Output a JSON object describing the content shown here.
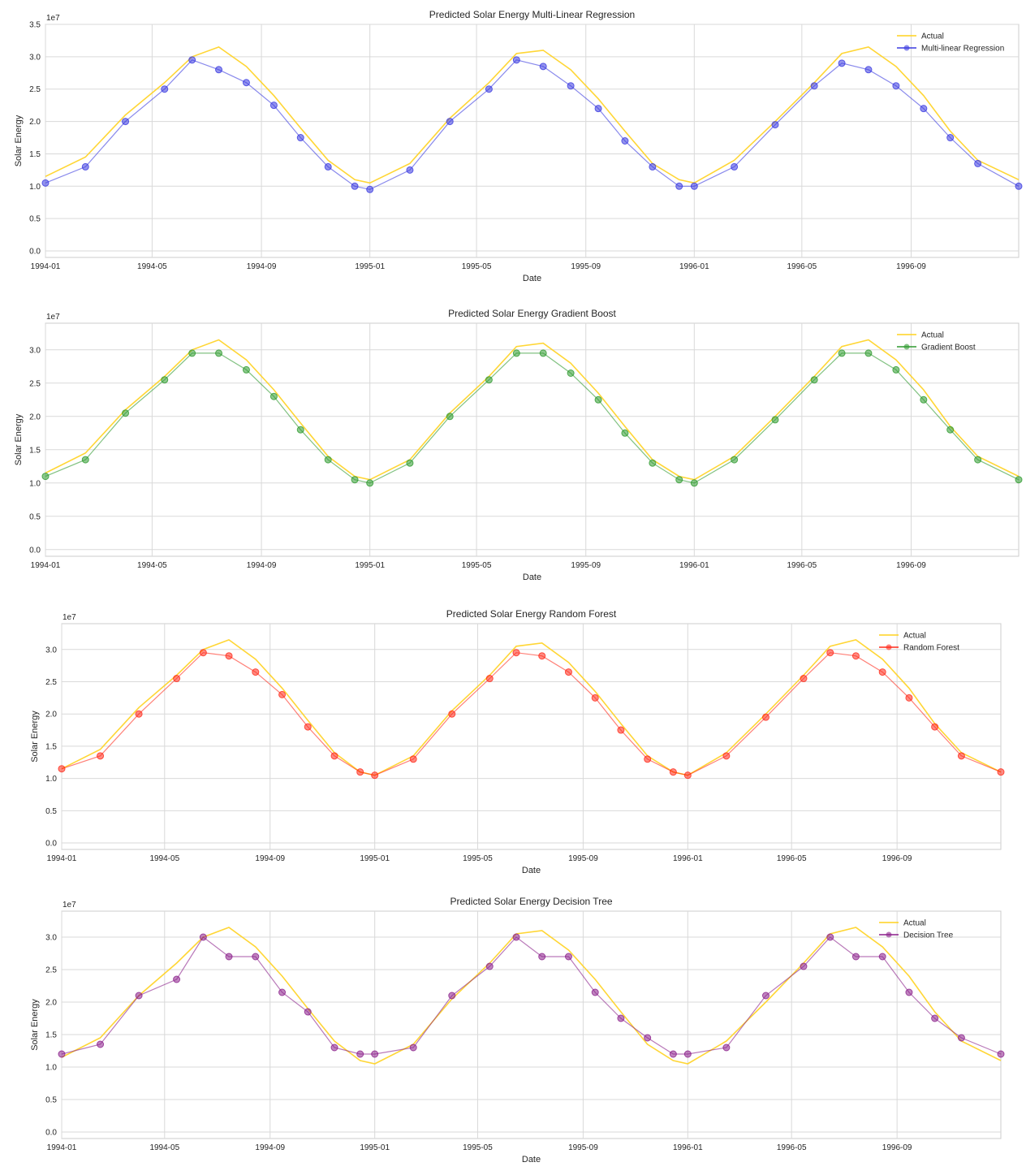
{
  "chart_data": [
    {
      "type": "line",
      "title": "Predicted Solar Energy Multi-Linear Regression",
      "xlabel": "Date",
      "ylabel": "Solar Energy",
      "y_multiplier": "1e7",
      "ylim": [
        -0.1,
        3.5
      ],
      "yticks": [
        0.0,
        0.5,
        1.0,
        1.5,
        2.0,
        2.5,
        3.0,
        3.5
      ],
      "xlim": [
        "1994-01-01",
        "1996-12-31"
      ],
      "xticks": [
        "1994-01",
        "1994-05",
        "1994-09",
        "1995-01",
        "1995-05",
        "1995-09",
        "1996-01",
        "1996-05",
        "1996-09"
      ],
      "grid": true,
      "legend": "top-right",
      "series": [
        {
          "name": "Actual",
          "color": "#ffd21f",
          "marker": "none",
          "x": [
            "1994-01-01",
            "1994-02-15",
            "1994-04-01",
            "1994-05-15",
            "1994-06-15",
            "1994-07-15",
            "1994-08-15",
            "1994-09-15",
            "1994-10-15",
            "1994-11-15",
            "1994-12-15",
            "1995-01-01",
            "1995-02-15",
            "1995-04-01",
            "1995-05-15",
            "1995-06-15",
            "1995-07-15",
            "1995-08-15",
            "1995-09-15",
            "1995-10-15",
            "1995-11-15",
            "1995-12-15",
            "1996-01-01",
            "1996-02-15",
            "1996-04-01",
            "1996-05-15",
            "1996-06-15",
            "1996-07-15",
            "1996-08-15",
            "1996-09-15",
            "1996-10-15",
            "1996-11-15",
            "1996-12-31"
          ],
          "y": [
            1.15,
            1.45,
            2.1,
            2.6,
            3.0,
            3.15,
            2.85,
            2.4,
            1.9,
            1.4,
            1.1,
            1.05,
            1.35,
            2.05,
            2.6,
            3.05,
            3.1,
            2.8,
            2.35,
            1.85,
            1.35,
            1.1,
            1.05,
            1.4,
            2.0,
            2.6,
            3.05,
            3.15,
            2.85,
            2.4,
            1.85,
            1.4,
            1.1
          ]
        },
        {
          "name": "Multi-linear Regression",
          "color": "#3a3ae0",
          "marker": "circle",
          "x": [
            "1994-01-01",
            "1994-02-15",
            "1994-04-01",
            "1994-05-15",
            "1994-06-15",
            "1994-07-15",
            "1994-08-15",
            "1994-09-15",
            "1994-10-15",
            "1994-11-15",
            "1994-12-15",
            "1995-01-01",
            "1995-02-15",
            "1995-04-01",
            "1995-05-15",
            "1995-06-15",
            "1995-07-15",
            "1995-08-15",
            "1995-09-15",
            "1995-10-15",
            "1995-11-15",
            "1995-12-15",
            "1996-01-01",
            "1996-02-15",
            "1996-04-01",
            "1996-05-15",
            "1996-06-15",
            "1996-07-15",
            "1996-08-15",
            "1996-09-15",
            "1996-10-15",
            "1996-11-15",
            "1996-12-31"
          ],
          "y": [
            1.05,
            1.3,
            2.0,
            2.5,
            2.95,
            2.8,
            2.6,
            2.25,
            1.75,
            1.3,
            1.0,
            0.95,
            1.25,
            2.0,
            2.5,
            2.95,
            2.85,
            2.55,
            2.2,
            1.7,
            1.3,
            1.0,
            1.0,
            1.3,
            1.95,
            2.55,
            2.9,
            2.8,
            2.55,
            2.2,
            1.75,
            1.35,
            1.0
          ]
        }
      ]
    },
    {
      "type": "line",
      "title": "Predicted Solar Energy Gradient Boost",
      "xlabel": "Date",
      "ylabel": "Solar Energy",
      "y_multiplier": "1e7",
      "ylim": [
        -0.1,
        3.4
      ],
      "yticks": [
        0.0,
        0.5,
        1.0,
        1.5,
        2.0,
        2.5,
        3.0
      ],
      "xlim": [
        "1994-01-01",
        "1996-12-31"
      ],
      "xticks": [
        "1994-01",
        "1994-05",
        "1994-09",
        "1995-01",
        "1995-05",
        "1995-09",
        "1996-01",
        "1996-05",
        "1996-09"
      ],
      "grid": true,
      "legend": "top-right",
      "series": [
        {
          "name": "Actual",
          "color": "#ffd21f",
          "marker": "none",
          "x": [
            "1994-01-01",
            "1994-02-15",
            "1994-04-01",
            "1994-05-15",
            "1994-06-15",
            "1994-07-15",
            "1994-08-15",
            "1994-09-15",
            "1994-10-15",
            "1994-11-15",
            "1994-12-15",
            "1995-01-01",
            "1995-02-15",
            "1995-04-01",
            "1995-05-15",
            "1995-06-15",
            "1995-07-15",
            "1995-08-15",
            "1995-09-15",
            "1995-10-15",
            "1995-11-15",
            "1995-12-15",
            "1996-01-01",
            "1996-02-15",
            "1996-04-01",
            "1996-05-15",
            "1996-06-15",
            "1996-07-15",
            "1996-08-15",
            "1996-09-15",
            "1996-10-15",
            "1996-11-15",
            "1996-12-31"
          ],
          "y": [
            1.15,
            1.45,
            2.1,
            2.6,
            3.0,
            3.15,
            2.85,
            2.4,
            1.9,
            1.4,
            1.1,
            1.05,
            1.35,
            2.05,
            2.6,
            3.05,
            3.1,
            2.8,
            2.35,
            1.85,
            1.35,
            1.1,
            1.05,
            1.4,
            2.0,
            2.6,
            3.05,
            3.15,
            2.85,
            2.4,
            1.85,
            1.4,
            1.1
          ]
        },
        {
          "name": "Gradient Boost",
          "color": "#2e9a2e",
          "marker": "circle",
          "x": [
            "1994-01-01",
            "1994-02-15",
            "1994-04-01",
            "1994-05-15",
            "1994-06-15",
            "1994-07-15",
            "1994-08-15",
            "1994-09-15",
            "1994-10-15",
            "1994-11-15",
            "1994-12-15",
            "1995-01-01",
            "1995-02-15",
            "1995-04-01",
            "1995-05-15",
            "1995-06-15",
            "1995-07-15",
            "1995-08-15",
            "1995-09-15",
            "1995-10-15",
            "1995-11-15",
            "1995-12-15",
            "1996-01-01",
            "1996-02-15",
            "1996-04-01",
            "1996-05-15",
            "1996-06-15",
            "1996-07-15",
            "1996-08-15",
            "1996-09-15",
            "1996-10-15",
            "1996-11-15",
            "1996-12-31"
          ],
          "y": [
            1.1,
            1.35,
            2.05,
            2.55,
            2.95,
            2.95,
            2.7,
            2.3,
            1.8,
            1.35,
            1.05,
            1.0,
            1.3,
            2.0,
            2.55,
            2.95,
            2.95,
            2.65,
            2.25,
            1.75,
            1.3,
            1.05,
            1.0,
            1.35,
            1.95,
            2.55,
            2.95,
            2.95,
            2.7,
            2.25,
            1.8,
            1.35,
            1.05
          ]
        }
      ]
    },
    {
      "type": "line",
      "title": "Predicted Solar Energy Random Forest",
      "xlabel": "Date",
      "ylabel": "Solar Energy",
      "y_multiplier": "1e7",
      "ylim": [
        -0.1,
        3.4
      ],
      "yticks": [
        0.0,
        0.5,
        1.0,
        1.5,
        2.0,
        2.5,
        3.0
      ],
      "xlim": [
        "1994-01-01",
        "1996-12-31"
      ],
      "xticks": [
        "1994-01",
        "1994-05",
        "1994-09",
        "1995-01",
        "1995-05",
        "1995-09",
        "1996-01",
        "1996-05",
        "1996-09"
      ],
      "grid": true,
      "legend": "top-right",
      "series": [
        {
          "name": "Actual",
          "color": "#ffd21f",
          "marker": "none",
          "x": [
            "1994-01-01",
            "1994-02-15",
            "1994-04-01",
            "1994-05-15",
            "1994-06-15",
            "1994-07-15",
            "1994-08-15",
            "1994-09-15",
            "1994-10-15",
            "1994-11-15",
            "1994-12-15",
            "1995-01-01",
            "1995-02-15",
            "1995-04-01",
            "1995-05-15",
            "1995-06-15",
            "1995-07-15",
            "1995-08-15",
            "1995-09-15",
            "1995-10-15",
            "1995-11-15",
            "1995-12-15",
            "1996-01-01",
            "1996-02-15",
            "1996-04-01",
            "1996-05-15",
            "1996-06-15",
            "1996-07-15",
            "1996-08-15",
            "1996-09-15",
            "1996-10-15",
            "1996-11-15",
            "1996-12-31"
          ],
          "y": [
            1.15,
            1.45,
            2.1,
            2.6,
            3.0,
            3.15,
            2.85,
            2.4,
            1.9,
            1.4,
            1.1,
            1.05,
            1.35,
            2.05,
            2.6,
            3.05,
            3.1,
            2.8,
            2.35,
            1.85,
            1.35,
            1.1,
            1.05,
            1.4,
            2.0,
            2.6,
            3.05,
            3.15,
            2.85,
            2.4,
            1.85,
            1.4,
            1.1
          ]
        },
        {
          "name": "Random Forest",
          "color": "#ff2a1a",
          "marker": "circle",
          "x": [
            "1994-01-01",
            "1994-02-15",
            "1994-04-01",
            "1994-05-15",
            "1994-06-15",
            "1994-07-15",
            "1994-08-15",
            "1994-09-15",
            "1994-10-15",
            "1994-11-15",
            "1994-12-15",
            "1995-01-01",
            "1995-02-15",
            "1995-04-01",
            "1995-05-15",
            "1995-06-15",
            "1995-07-15",
            "1995-08-15",
            "1995-09-15",
            "1995-10-15",
            "1995-11-15",
            "1995-12-15",
            "1996-01-01",
            "1996-02-15",
            "1996-04-01",
            "1996-05-15",
            "1996-06-15",
            "1996-07-15",
            "1996-08-15",
            "1996-09-15",
            "1996-10-15",
            "1996-11-15",
            "1996-12-31"
          ],
          "y": [
            1.15,
            1.35,
            2.0,
            2.55,
            2.95,
            2.9,
            2.65,
            2.3,
            1.8,
            1.35,
            1.1,
            1.05,
            1.3,
            2.0,
            2.55,
            2.95,
            2.9,
            2.65,
            2.25,
            1.75,
            1.3,
            1.1,
            1.05,
            1.35,
            1.95,
            2.55,
            2.95,
            2.9,
            2.65,
            2.25,
            1.8,
            1.35,
            1.1
          ]
        }
      ]
    },
    {
      "type": "line",
      "title": "Predicted Solar Energy Decision Tree",
      "xlabel": "Date",
      "ylabel": "Solar Energy",
      "y_multiplier": "1e7",
      "ylim": [
        -0.1,
        3.4
      ],
      "yticks": [
        0.0,
        0.5,
        1.0,
        1.5,
        2.0,
        2.5,
        3.0
      ],
      "xlim": [
        "1994-01-01",
        "1996-12-31"
      ],
      "xticks": [
        "1994-01",
        "1994-05",
        "1994-09",
        "1995-01",
        "1995-05",
        "1995-09",
        "1996-01",
        "1996-05",
        "1996-09"
      ],
      "grid": true,
      "legend": "top-right",
      "series": [
        {
          "name": "Actual",
          "color": "#ffd21f",
          "marker": "none",
          "x": [
            "1994-01-01",
            "1994-02-15",
            "1994-04-01",
            "1994-05-15",
            "1994-06-15",
            "1994-07-15",
            "1994-08-15",
            "1994-09-15",
            "1994-10-15",
            "1994-11-15",
            "1994-12-15",
            "1995-01-01",
            "1995-02-15",
            "1995-04-01",
            "1995-05-15",
            "1995-06-15",
            "1995-07-15",
            "1995-08-15",
            "1995-09-15",
            "1995-10-15",
            "1995-11-15",
            "1995-12-15",
            "1996-01-01",
            "1996-02-15",
            "1996-04-01",
            "1996-05-15",
            "1996-06-15",
            "1996-07-15",
            "1996-08-15",
            "1996-09-15",
            "1996-10-15",
            "1996-11-15",
            "1996-12-31"
          ],
          "y": [
            1.15,
            1.45,
            2.1,
            2.6,
            3.0,
            3.15,
            2.85,
            2.4,
            1.9,
            1.4,
            1.1,
            1.05,
            1.35,
            2.05,
            2.6,
            3.05,
            3.1,
            2.8,
            2.35,
            1.85,
            1.35,
            1.1,
            1.05,
            1.4,
            2.0,
            2.6,
            3.05,
            3.15,
            2.85,
            2.4,
            1.85,
            1.4,
            1.1
          ]
        },
        {
          "name": "Decision Tree",
          "color": "#8b1f8b",
          "marker": "circle",
          "x": [
            "1994-01-01",
            "1994-02-15",
            "1994-04-01",
            "1994-05-15",
            "1994-06-15",
            "1994-07-15",
            "1994-08-15",
            "1994-09-15",
            "1994-10-15",
            "1994-11-15",
            "1994-12-15",
            "1995-01-01",
            "1995-02-15",
            "1995-04-01",
            "1995-05-15",
            "1995-06-15",
            "1995-07-15",
            "1995-08-15",
            "1995-09-15",
            "1995-10-15",
            "1995-11-15",
            "1995-12-15",
            "1996-01-01",
            "1996-02-15",
            "1996-04-01",
            "1996-05-15",
            "1996-06-15",
            "1996-07-15",
            "1996-08-15",
            "1996-09-15",
            "1996-10-15",
            "1996-11-15",
            "1996-12-31"
          ],
          "y": [
            1.2,
            1.35,
            2.1,
            2.35,
            3.0,
            2.7,
            2.7,
            2.15,
            1.85,
            1.3,
            1.2,
            1.2,
            1.3,
            2.1,
            2.55,
            3.0,
            2.7,
            2.7,
            2.15,
            1.75,
            1.45,
            1.2,
            1.2,
            1.3,
            2.1,
            2.55,
            3.0,
            2.7,
            2.7,
            2.15,
            1.75,
            1.45,
            1.2
          ]
        }
      ]
    }
  ]
}
